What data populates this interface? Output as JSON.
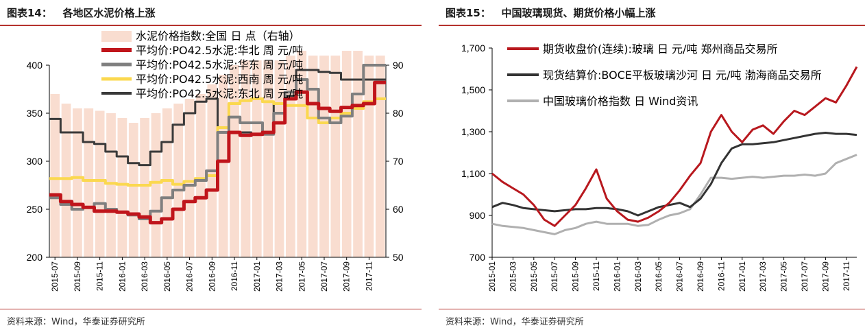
{
  "left": {
    "title": "图表14：   各地区水泥价格上涨",
    "source": "资料来源：Wind，华泰证券研究所",
    "chart_data": {
      "type": "line",
      "x": [
        "2015-07",
        "2015-08",
        "2015-09",
        "2015-10",
        "2015-11",
        "2015-12",
        "2016-01",
        "2016-02",
        "2016-03",
        "2016-04",
        "2016-05",
        "2016-06",
        "2016-07",
        "2016-08",
        "2016-09",
        "2016-10",
        "2016-11",
        "2016-12",
        "2017-01",
        "2017-02",
        "2017-03",
        "2017-04",
        "2017-05",
        "2017-06",
        "2017-07",
        "2017-08",
        "2017-09",
        "2017-10",
        "2017-11",
        "2017-12"
      ],
      "xticks": [
        "2015-07",
        "2015-09",
        "2015-11",
        "2016-01",
        "2016-03",
        "2016-05",
        "2016-07",
        "2016-09",
        "2016-11",
        "2017-01",
        "2017-03",
        "2017-05",
        "2017-07",
        "2017-09",
        "2017-11"
      ],
      "ylim": [
        200,
        400
      ],
      "yticks": [
        "400",
        "350",
        "300",
        "250",
        "200"
      ],
      "y2lim": [
        50,
        90
      ],
      "y2ticks": [
        "90",
        "80",
        "70",
        "60",
        "50"
      ],
      "bars": {
        "name": "水泥价格指数:全国 日 点（右轴）",
        "color": "#f9ddd0",
        "axis": "right",
        "values": [
          84,
          82,
          81,
          81,
          80.5,
          80,
          79,
          78,
          79,
          80,
          81,
          82,
          83,
          84,
          86,
          88,
          90,
          91,
          91,
          91,
          91,
          92,
          93,
          92,
          92,
          92,
          93,
          93,
          92,
          92
        ]
      },
      "series": [
        {
          "name": "平均价:PO42.5水泥:华北 周 元/吨",
          "color": "#c0151b",
          "width": 5,
          "values": [
            265,
            258,
            255,
            252,
            248,
            248,
            247,
            245,
            242,
            236,
            240,
            250,
            258,
            262,
            270,
            300,
            330,
            327,
            328,
            330,
            340,
            365,
            372,
            360,
            355,
            352,
            356,
            358,
            360,
            382
          ]
        },
        {
          "name": "平均价:PO42.5水泥:华东 周 元/吨",
          "color": "#7f7f7f",
          "width": 4,
          "values": [
            262,
            255,
            250,
            252,
            256,
            250,
            247,
            244,
            240,
            248,
            262,
            270,
            275,
            280,
            290,
            330,
            346,
            340,
            340,
            328,
            350,
            372,
            385,
            375,
            345,
            340,
            347,
            370,
            400,
            400
          ]
        },
        {
          "name": "平均价:PO42.5水泥:西南 周 元/吨",
          "color": "#fbd84f",
          "width": 4,
          "values": [
            282,
            282,
            283,
            280,
            280,
            277,
            276,
            275,
            275,
            278,
            280,
            276,
            279,
            282,
            285,
            335,
            360,
            363,
            365,
            362,
            360,
            358,
            358,
            345,
            340,
            345,
            350,
            355,
            362,
            365
          ]
        },
        {
          "name": "平均价:PO42.5水泥:东北 周 元/吨",
          "color": "#3a3a3a",
          "width": 3,
          "values": [
            344,
            330,
            330,
            320,
            318,
            310,
            305,
            298,
            296,
            310,
            320,
            338,
            350,
            362,
            365,
            335,
            330,
            330,
            328,
            330,
            360,
            368,
            395,
            395,
            393,
            392,
            385,
            385,
            385,
            385
          ]
        }
      ]
    }
  },
  "right": {
    "title": "图表15：   中国玻璃现货、期货价格小幅上涨",
    "source": "资料来源：Wind，华泰证券研究所",
    "chart_data": {
      "type": "line",
      "x": [
        "2015-01",
        "2015-02",
        "2015-03",
        "2015-04",
        "2015-05",
        "2015-06",
        "2015-07",
        "2015-08",
        "2015-09",
        "2015-10",
        "2015-11",
        "2015-12",
        "2016-01",
        "2016-02",
        "2016-03",
        "2016-04",
        "2016-05",
        "2016-06",
        "2016-07",
        "2016-08",
        "2016-09",
        "2016-10",
        "2016-11",
        "2016-12",
        "2017-01",
        "2017-02",
        "2017-03",
        "2017-04",
        "2017-05",
        "2017-06",
        "2017-07",
        "2017-08",
        "2017-09",
        "2017-10",
        "2017-11",
        "2017-12"
      ],
      "xticks": [
        "2015-01",
        "2015-03",
        "2015-05",
        "2015-07",
        "2015-09",
        "2015-11",
        "2016-01",
        "2016-03",
        "2016-05",
        "2016-07",
        "2016-09",
        "2016-11",
        "2017-01",
        "2017-03",
        "2017-05",
        "2017-07",
        "2017-09",
        "2017-11"
      ],
      "ylim": [
        700,
        1700
      ],
      "yticks": [
        "1,700",
        "1,500",
        "1,300",
        "1,100",
        "900",
        "700"
      ],
      "series": [
        {
          "name": "期货收盘价(连续):玻璃 日 元/吨 郑州商品交易所",
          "color": "#b8181e",
          "width": 3,
          "values": [
            1100,
            1060,
            1030,
            1000,
            950,
            880,
            850,
            900,
            950,
            1030,
            1120,
            980,
            920,
            880,
            870,
            890,
            920,
            960,
            1020,
            1090,
            1150,
            1300,
            1380,
            1300,
            1250,
            1310,
            1330,
            1290,
            1350,
            1400,
            1380,
            1420,
            1460,
            1440,
            1520,
            1610
          ]
        },
        {
          "name": "现货结算价:BOCE平板玻璃沙河 日 元/吨 渤海商品交易所",
          "color": "#333333",
          "width": 3,
          "values": [
            940,
            960,
            950,
            935,
            930,
            925,
            920,
            925,
            930,
            930,
            935,
            935,
            930,
            920,
            900,
            920,
            940,
            950,
            960,
            940,
            980,
            1050,
            1150,
            1220,
            1240,
            1240,
            1245,
            1250,
            1260,
            1270,
            1280,
            1290,
            1295,
            1290,
            1290,
            1285
          ]
        },
        {
          "name": "中国玻璃价格指数 日 Wind资讯",
          "color": "#b0b0b0",
          "width": 3,
          "values": [
            860,
            850,
            845,
            840,
            830,
            820,
            810,
            830,
            840,
            860,
            870,
            860,
            860,
            860,
            850,
            855,
            880,
            900,
            910,
            930,
            1000,
            1080,
            1080,
            1075,
            1080,
            1085,
            1080,
            1085,
            1090,
            1090,
            1095,
            1090,
            1100,
            1150,
            1170,
            1190
          ]
        }
      ]
    }
  }
}
